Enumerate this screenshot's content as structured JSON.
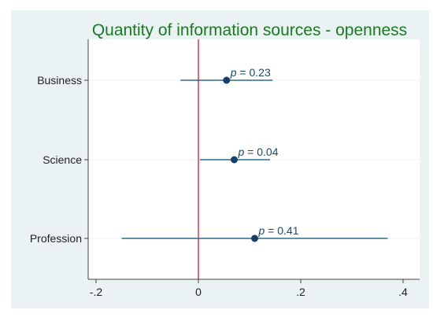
{
  "chart_data": {
    "type": "scatter",
    "title": "Quantity of information sources - openness",
    "xlabel": "",
    "ylabel": "",
    "xlim": [
      -0.22,
      0.42
    ],
    "xticks": [
      -0.2,
      0,
      0.2,
      0.4
    ],
    "xtick_labels": [
      "-.2",
      "0",
      ".2",
      ".4"
    ],
    "reference_line_x": 0,
    "grid": true,
    "legend": "none",
    "categories": [
      "Business",
      "Science",
      "Profession"
    ],
    "points": [
      {
        "category": "Business",
        "estimate": 0.055,
        "ci_low": -0.035,
        "ci_high": 0.145,
        "p_symbol": "p",
        "p_value": "= 0.23"
      },
      {
        "category": "Science",
        "estimate": 0.07,
        "ci_low": 0.003,
        "ci_high": 0.14,
        "p_symbol": "p",
        "p_value": "= 0.04"
      },
      {
        "category": "Profession",
        "estimate": 0.11,
        "ci_low": -0.15,
        "ci_high": 0.37,
        "p_symbol": "p",
        "p_value": "= 0.41"
      }
    ],
    "colors": {
      "point": "#1a3f66",
      "ci_line": "#2e6b8f",
      "reference_line": "#e0334a",
      "title": "#1a7a24",
      "grid": "#eef2f3",
      "outer_background": "#eaf2f3"
    }
  }
}
